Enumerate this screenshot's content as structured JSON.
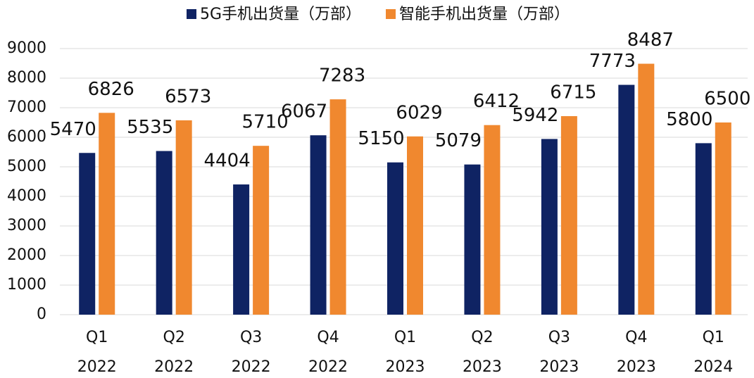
{
  "chart_data": {
    "type": "bar",
    "categories": [
      [
        "Q1",
        "2022"
      ],
      [
        "Q2",
        "2022"
      ],
      [
        "Q3",
        "2022"
      ],
      [
        "Q4",
        "2022"
      ],
      [
        "Q1",
        "2023"
      ],
      [
        "Q2",
        "2023"
      ],
      [
        "Q3",
        "2023"
      ],
      [
        "Q4",
        "2023"
      ],
      [
        "Q1",
        "2024"
      ]
    ],
    "series": [
      {
        "name": "5G手机出货量（万部）",
        "color": "#0f2363",
        "values": [
          5470,
          5535,
          4404,
          6067,
          5150,
          5079,
          5942,
          7773,
          5800
        ]
      },
      {
        "name": "智能手机出货量（万部）",
        "color": "#f0882f",
        "values": [
          6826,
          6573,
          5710,
          7283,
          6029,
          6412,
          6715,
          8487,
          6500
        ]
      }
    ],
    "ylim": [
      0,
      9000
    ],
    "yticks": [
      0,
      1000,
      2000,
      3000,
      4000,
      5000,
      6000,
      7000,
      8000,
      9000
    ],
    "grid": true,
    "legend": "top"
  }
}
